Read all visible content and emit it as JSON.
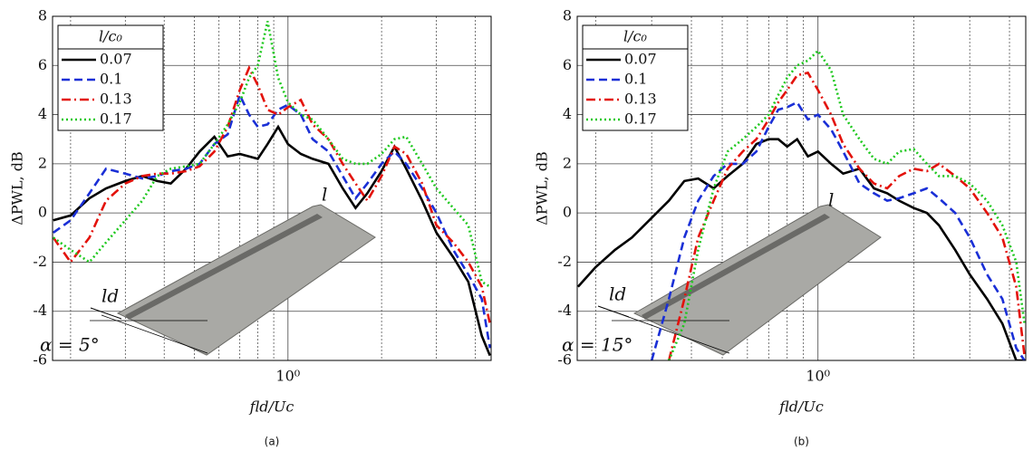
{
  "chart_data": [
    {
      "type": "line",
      "caption": "(a)",
      "xlabel": "fld/Uc",
      "ylabel": "ΔPWL, dB",
      "xscale": "log",
      "xlim": [
        0.175,
        4.5
      ],
      "xticks": [
        {
          "value": 1,
          "label": "10⁰"
        }
      ],
      "minor_grid": [
        0.2,
        0.3,
        0.4,
        0.5,
        0.6,
        0.7,
        0.8,
        0.9,
        2,
        3,
        4
      ],
      "ylim": [
        -6,
        8
      ],
      "yticks": [
        -6,
        -4,
        -2,
        0,
        2,
        4,
        6,
        8
      ],
      "grid": true,
      "legend": "upper left",
      "legend_title": "l/c₀",
      "annotations": [
        "l",
        "ld",
        "α = 5°"
      ],
      "x": [
        0.176,
        0.2,
        0.23,
        0.26,
        0.3,
        0.34,
        0.38,
        0.42,
        0.47,
        0.52,
        0.58,
        0.64,
        0.7,
        0.75,
        0.8,
        0.86,
        0.93,
        1.0,
        1.1,
        1.2,
        1.35,
        1.5,
        1.65,
        1.8,
        2.0,
        2.2,
        2.4,
        2.7,
        3.0,
        3.4,
        3.8,
        4.2,
        4.46
      ],
      "series": [
        {
          "name": "0.07",
          "color": "#000000",
          "linestyle": "solid",
          "values": [
            -0.3,
            -0.1,
            0.6,
            1.0,
            1.3,
            1.5,
            1.3,
            1.2,
            1.8,
            2.5,
            3.1,
            2.3,
            2.4,
            2.3,
            2.2,
            2.8,
            3.5,
            2.8,
            2.4,
            2.2,
            2.0,
            1.0,
            0.2,
            0.8,
            1.7,
            2.7,
            1.8,
            0.5,
            -0.8,
            -1.8,
            -2.8,
            -5.0,
            -5.8
          ]
        },
        {
          "name": "0.1",
          "color": "#1a2fd6",
          "linestyle": "dashed",
          "values": [
            -0.8,
            -0.3,
            0.8,
            1.8,
            1.6,
            1.4,
            1.5,
            1.7,
            1.8,
            2.0,
            2.8,
            3.2,
            4.8,
            4.0,
            3.5,
            3.6,
            4.2,
            4.4,
            4.0,
            3.0,
            2.5,
            1.5,
            0.6,
            1.2,
            2.0,
            2.5,
            2.0,
            1.0,
            0.0,
            -1.5,
            -2.5,
            -3.5,
            -5.5
          ]
        },
        {
          "name": "0.13",
          "color": "#e3120b",
          "linestyle": "dashdot",
          "values": [
            -1.0,
            -2.0,
            -1.0,
            0.5,
            1.2,
            1.5,
            1.6,
            1.6,
            1.7,
            1.9,
            2.5,
            3.5,
            5.0,
            5.9,
            5.2,
            4.2,
            4.0,
            4.3,
            4.6,
            3.6,
            3.0,
            2.0,
            1.2,
            0.5,
            1.5,
            2.7,
            2.4,
            1.2,
            -0.5,
            -1.2,
            -2.0,
            -3.0,
            -4.5
          ]
        },
        {
          "name": "0.17",
          "color": "#1ec81e",
          "linestyle": "dotted",
          "values": [
            -1.0,
            -1.5,
            -2.0,
            -1.2,
            -0.3,
            0.5,
            1.5,
            1.8,
            1.9,
            2.0,
            2.8,
            3.6,
            4.5,
            5.5,
            6.0,
            7.8,
            5.5,
            4.5,
            4.0,
            3.8,
            3.0,
            2.2,
            2.0,
            2.0,
            2.4,
            3.0,
            3.1,
            2.0,
            1.0,
            0.2,
            -0.5,
            -2.8,
            -3.0
          ]
        }
      ]
    },
    {
      "type": "line",
      "caption": "(b)",
      "xlabel": "fld/Uc",
      "ylabel": "ΔPWL, dB",
      "xscale": "log",
      "xlim": [
        0.175,
        4.5
      ],
      "xticks": [
        {
          "value": 1,
          "label": "10⁰"
        }
      ],
      "minor_grid": [
        0.2,
        0.3,
        0.4,
        0.5,
        0.6,
        0.7,
        0.8,
        0.9,
        2,
        3,
        4
      ],
      "ylim": [
        -6,
        8
      ],
      "yticks": [
        -6,
        -4,
        -2,
        0,
        2,
        4,
        6,
        8
      ],
      "grid": true,
      "legend": "upper left",
      "legend_title": "l/c₀",
      "annotations": [
        "l",
        "ld",
        "α = 15°"
      ],
      "x": [
        0.176,
        0.2,
        0.23,
        0.26,
        0.3,
        0.34,
        0.38,
        0.42,
        0.47,
        0.52,
        0.58,
        0.64,
        0.7,
        0.75,
        0.8,
        0.86,
        0.93,
        1.0,
        1.1,
        1.2,
        1.35,
        1.5,
        1.65,
        1.8,
        2.0,
        2.2,
        2.4,
        2.7,
        3.0,
        3.4,
        3.8,
        4.2,
        4.46
      ],
      "series": [
        {
          "name": "0.07",
          "color": "#000000",
          "linestyle": "solid",
          "values": [
            -3.0,
            -2.2,
            -1.5,
            -1.0,
            -0.2,
            0.5,
            1.3,
            1.4,
            1.0,
            1.5,
            2.0,
            2.8,
            3.0,
            3.0,
            2.7,
            3.0,
            2.3,
            2.5,
            2.0,
            1.6,
            1.8,
            1.0,
            0.8,
            0.5,
            0.2,
            0.0,
            -0.5,
            -1.5,
            -2.5,
            -3.5,
            -4.5,
            -6.0,
            -6.0
          ]
        },
        {
          "name": "0.1",
          "color": "#1a2fd6",
          "linestyle": "dashed",
          "values": [
            null,
            null,
            null,
            null,
            -6.0,
            -3.5,
            -1.0,
            0.5,
            1.5,
            2.0,
            2.0,
            2.5,
            3.5,
            4.2,
            4.3,
            4.5,
            3.8,
            4.0,
            3.4,
            2.5,
            1.2,
            0.8,
            0.5,
            0.6,
            0.8,
            1.0,
            0.6,
            0.0,
            -1.0,
            -2.5,
            -3.5,
            -5.5,
            -6.0
          ]
        },
        {
          "name": "0.13",
          "color": "#e3120b",
          "linestyle": "dashdot",
          "values": [
            null,
            null,
            null,
            null,
            null,
            -6.0,
            -3.5,
            -1.0,
            0.5,
            1.8,
            2.5,
            3.0,
            3.8,
            4.5,
            5.0,
            5.6,
            5.7,
            5.0,
            4.0,
            2.8,
            1.8,
            1.2,
            1.0,
            1.5,
            1.8,
            1.7,
            2.0,
            1.5,
            1.0,
            0.0,
            -1.0,
            -3.0,
            -5.8
          ]
        },
        {
          "name": "0.17",
          "color": "#1ec81e",
          "linestyle": "dotted",
          "values": [
            null,
            null,
            null,
            null,
            null,
            -6.0,
            -4.5,
            -1.5,
            1.0,
            2.5,
            3.0,
            3.5,
            4.0,
            4.8,
            5.5,
            6.0,
            6.2,
            6.6,
            5.8,
            4.0,
            3.0,
            2.2,
            2.0,
            2.5,
            2.6,
            2.0,
            1.5,
            1.5,
            1.2,
            0.5,
            -0.5,
            -2.0,
            -4.5
          ]
        }
      ]
    }
  ]
}
